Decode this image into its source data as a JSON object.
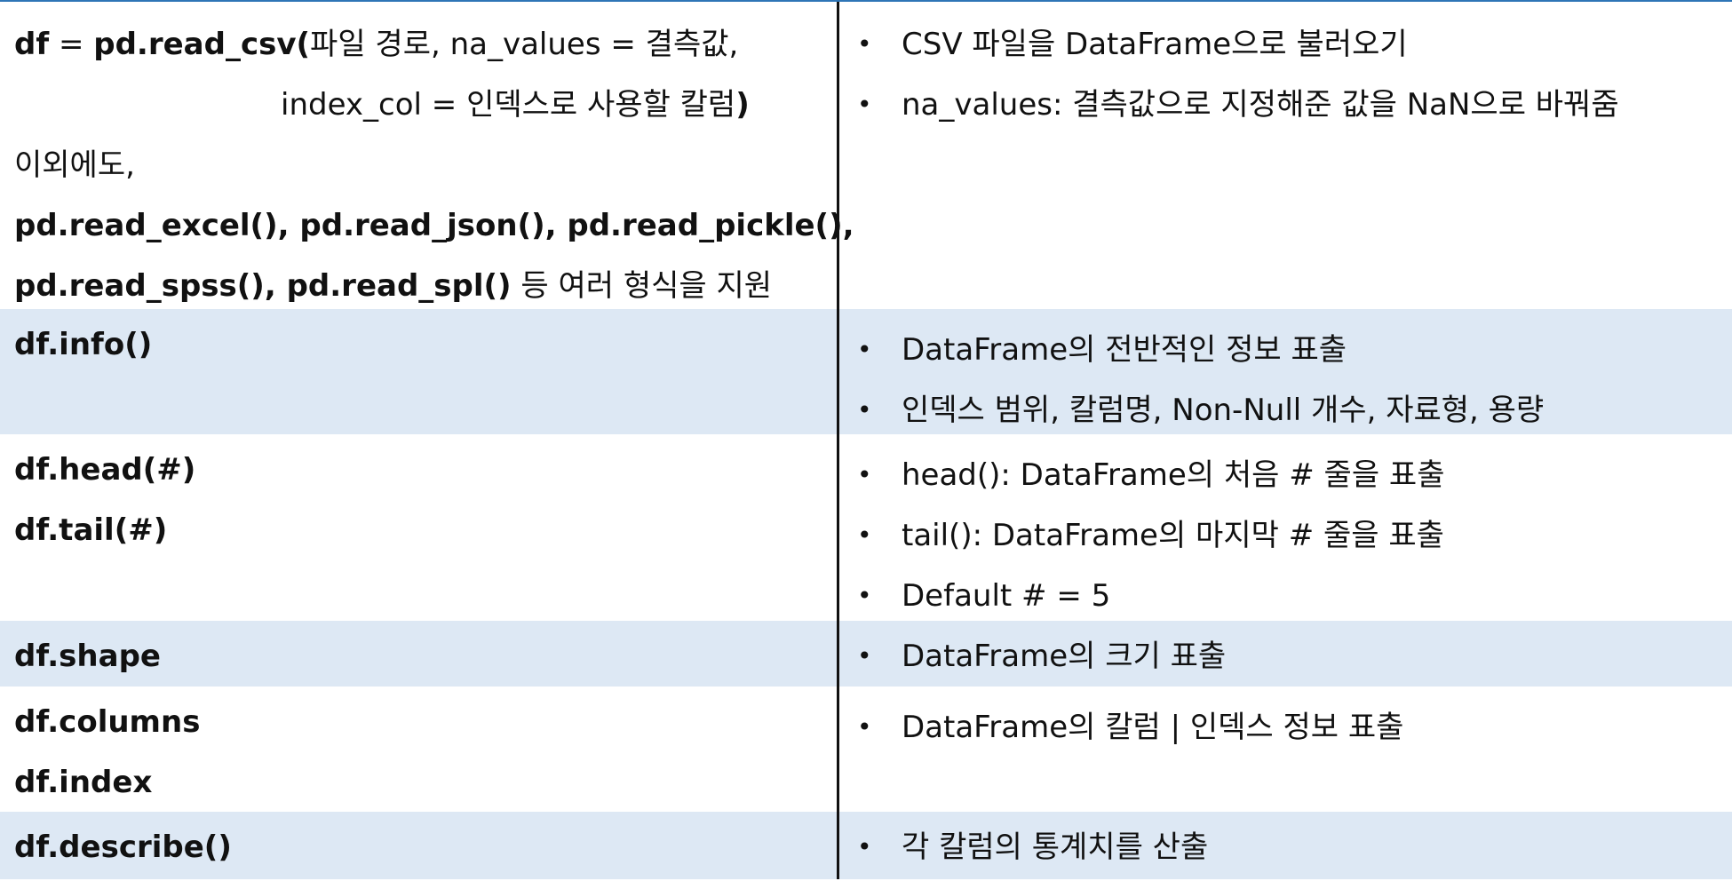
{
  "rows": [
    {
      "left": [
        [
          {
            "t": "df",
            "b": true
          },
          {
            "t": " = "
          },
          {
            "t": "pd.read_csv(",
            "b": true
          },
          {
            "t": "파일 경로, na_values = 결측값,"
          }
        ],
        [
          {
            "t": "index_col = 인덱스로 사용할 칼럼",
            "indent": true
          },
          {
            "t": ")",
            "b": true
          }
        ],
        [
          {
            "t": "이외에도,"
          }
        ],
        [
          {
            "t": "pd.read_excel(), pd.read_json(), pd.read_pickle(),",
            "b": true
          }
        ],
        [
          {
            "t": "pd.read_spss(), pd.read_spl()",
            "b": true
          },
          {
            "t": " 등 여러 형식을 지원"
          }
        ]
      ],
      "right": [
        "CSV 파일을 DataFrame으로 불러오기",
        "na_values: 결측값으로 지정해준 값을 NaN으로 바꿔줌"
      ],
      "shaded": false
    },
    {
      "left": [
        [
          {
            "t": "df.info()",
            "b": true
          }
        ]
      ],
      "right": [
        "DataFrame의 전반적인 정보 표출",
        "인덱스 범위, 칼럼명, Non-Null 개수, 자료형, 용량"
      ],
      "shaded": true
    },
    {
      "left": [
        [
          {
            "t": "df.head(#)",
            "b": true
          }
        ],
        [
          {
            "t": "df.tail(#)",
            "b": true
          }
        ]
      ],
      "right": [
        "head(): DataFrame의 처음 # 줄을 표출",
        "tail(): DataFrame의 마지막 # 줄을 표출",
        "Default # = 5"
      ],
      "shaded": false
    },
    {
      "left": [
        [
          {
            "t": "df.shape",
            "b": true
          }
        ]
      ],
      "right": [
        "DataFrame의 크기 표출"
      ],
      "shaded": true
    },
    {
      "left": [
        [
          {
            "t": "df.columns",
            "b": true
          }
        ],
        [
          {
            "t": "df.index",
            "b": true
          }
        ]
      ],
      "right": [
        "DataFrame의 칼럼 | 인덱스 정보 표출"
      ],
      "shaded": false
    },
    {
      "left": [
        [
          {
            "t": "df.describe()",
            "b": true
          }
        ]
      ],
      "right": [
        "각 칼럼의 통계치를 산출"
      ],
      "shaded": true
    }
  ],
  "bullet_glyph": "•",
  "colors": {
    "accent": "#2e75b6",
    "shade": "#dde8f4",
    "divider": "#111111"
  }
}
